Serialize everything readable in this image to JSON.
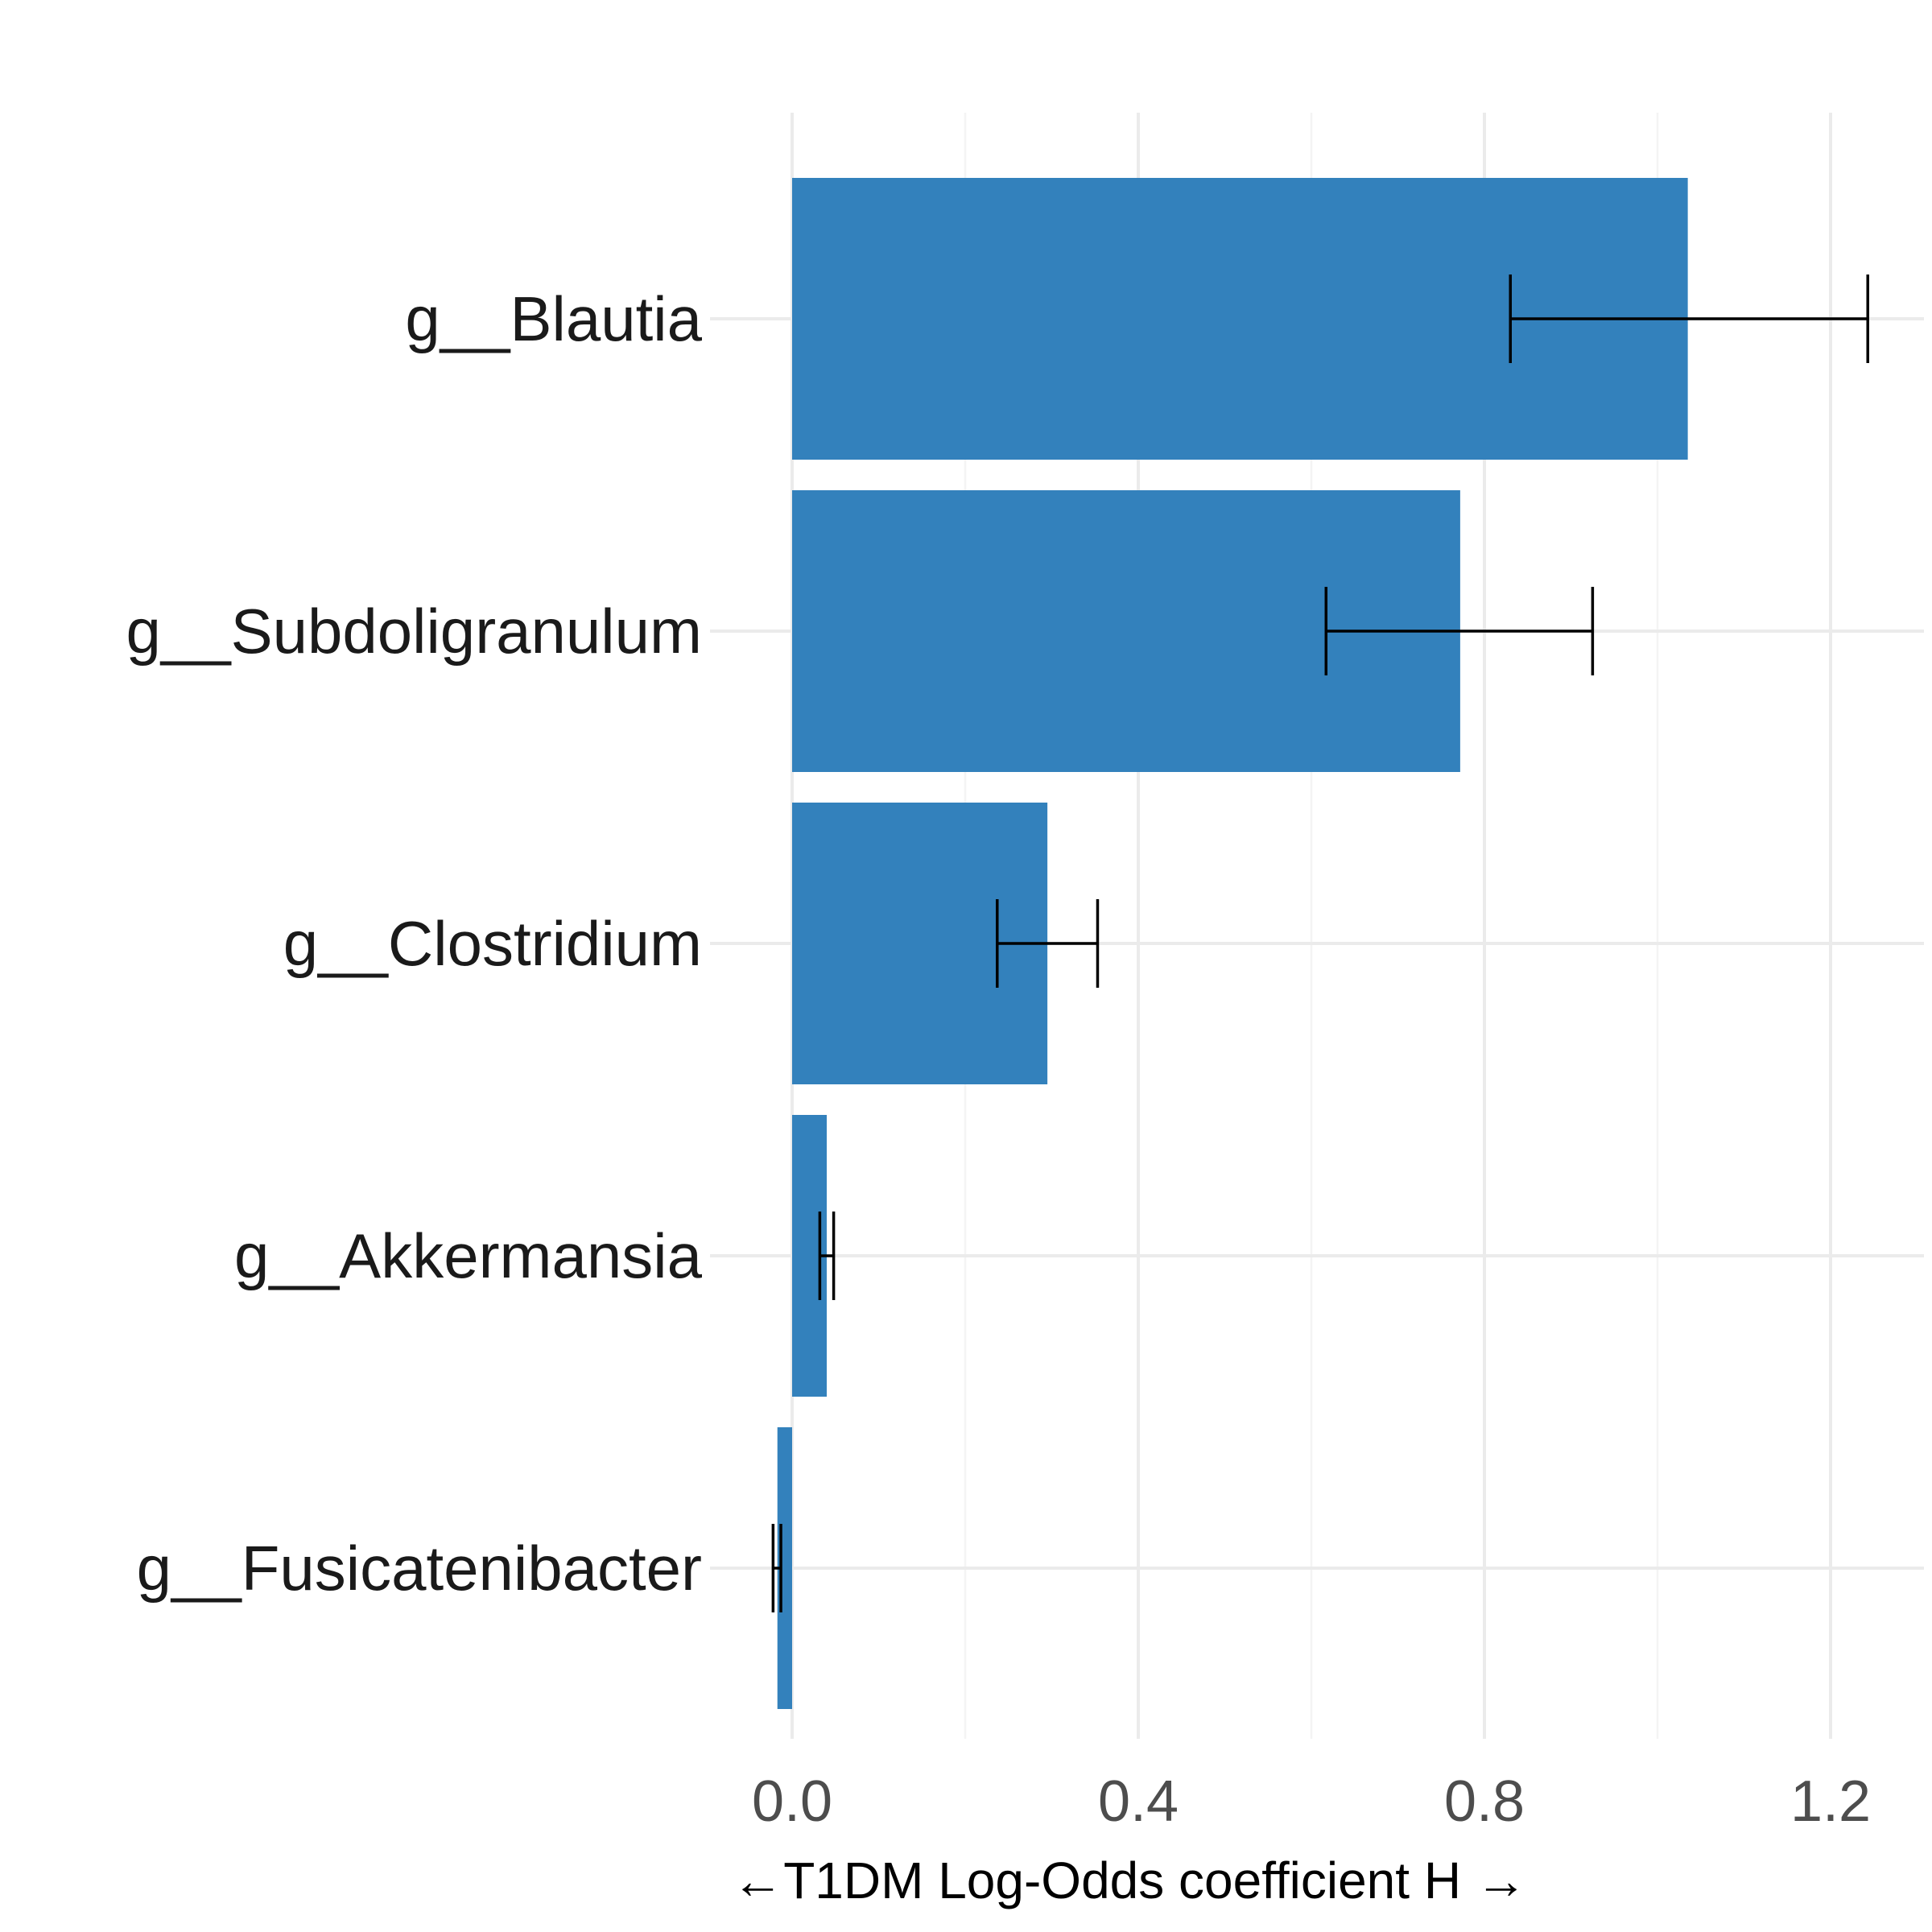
{
  "chart_data": {
    "type": "bar",
    "orientation": "horizontal",
    "categories": [
      "g__Blautia",
      "g__Subdoligranulum",
      "g__Clostridium",
      "g__Akkermansia",
      "g__Fusicatenibacter"
    ],
    "values": [
      1.035,
      0.772,
      0.295,
      0.04,
      -0.017
    ],
    "error_low": [
      0.83,
      0.617,
      0.237,
      0.032,
      -0.022
    ],
    "error_high": [
      1.243,
      0.925,
      0.353,
      0.048,
      -0.013
    ],
    "xlabel": "←T1DM  Log-Odds coefficient  H →",
    "ylabel": "",
    "title": "",
    "xlim": [
      -0.045,
      1.31
    ],
    "xticks": [
      0.0,
      0.4,
      0.8,
      1.2
    ],
    "xtick_labels": [
      "0.0",
      "0.4",
      "0.8",
      "1.2"
    ],
    "grid": true,
    "legend": "none",
    "bar_color": "#3381bc"
  }
}
